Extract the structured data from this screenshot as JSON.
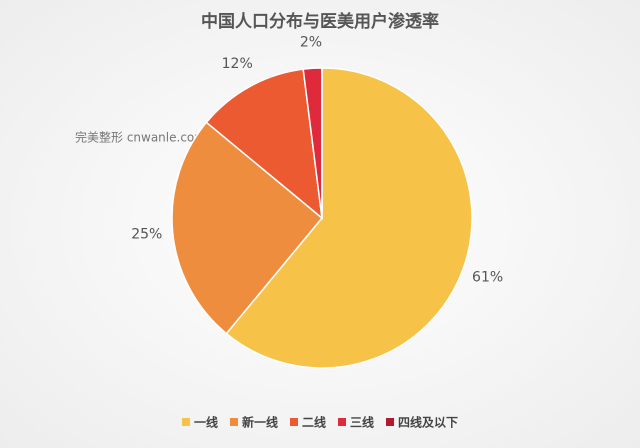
{
  "chart_data": {
    "type": "pie",
    "title": "中国人口分布与医美用户渗透率",
    "watermark": "完美整形 cnwanle.com",
    "categories": [
      "一线",
      "新一线",
      "二线",
      "三线",
      "四线及以下"
    ],
    "values": [
      61,
      25,
      12,
      2,
      0
    ],
    "value_labels": [
      "61%",
      "25%",
      "12%",
      "2%",
      null
    ],
    "colors": [
      "#F6C247",
      "#EF8D3E",
      "#EC5A31",
      "#DE2A3B",
      "#B3182F"
    ],
    "legend": "bottom"
  }
}
